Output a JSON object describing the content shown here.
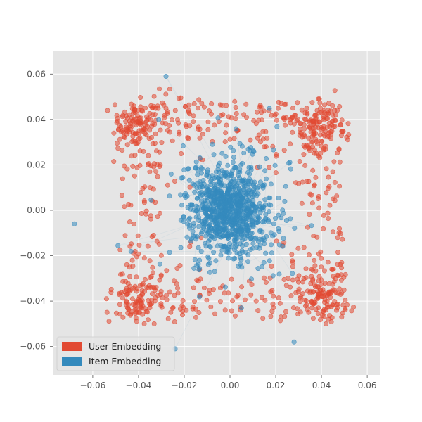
{
  "chart_data": {
    "type": "scatter",
    "title": "",
    "xlabel": "",
    "ylabel": "",
    "xlim": [
      -0.0775,
      0.0655
    ],
    "ylim": [
      -0.0725,
      0.07
    ],
    "xticks": [
      -0.06,
      -0.04,
      -0.02,
      0.0,
      0.02,
      0.04,
      0.06
    ],
    "yticks": [
      -0.06,
      -0.04,
      -0.02,
      0.0,
      0.02,
      0.04,
      0.06
    ],
    "xtick_labels": [
      "−0.06",
      "−0.04",
      "−0.02",
      "0.00",
      "0.02",
      "0.04",
      "0.06"
    ],
    "ytick_labels": [
      "−0.06",
      "−0.04",
      "−0.02",
      "0.00",
      "0.02",
      "0.04",
      "0.06"
    ],
    "grid": true,
    "legend_position": "lower-left",
    "series": [
      {
        "name": "User Embedding",
        "color": "#E24A33",
        "count": 900,
        "distribution": "four dense corner clusters near (±0.04, ±0.04) with a sparser ring spanning about -0.055 to 0.055 on both axes",
        "cluster_centers": [
          [
            -0.04,
            0.038
          ],
          [
            0.04,
            0.038
          ],
          [
            -0.04,
            -0.038
          ],
          [
            0.04,
            -0.038
          ]
        ]
      },
      {
        "name": "Item Embedding",
        "color": "#348ABD",
        "count": 900,
        "distribution": "dense central cloud around (0, 0), mostly within about ±0.02, with faint connecting lines and scattered outliers",
        "cluster_centers": [
          [
            0.0,
            0.0
          ]
        ],
        "outliers": [
          [
            -0.068,
            -0.006
          ],
          [
            -0.028,
            0.059
          ],
          [
            -0.024,
            -0.061
          ],
          [
            0.028,
            -0.058
          ],
          [
            0.005,
            -0.043
          ]
        ]
      }
    ]
  }
}
